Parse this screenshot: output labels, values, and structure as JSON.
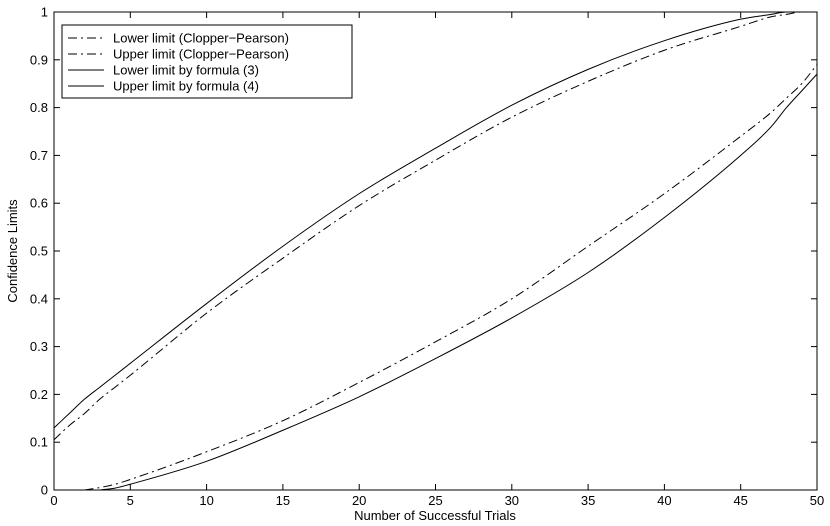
{
  "chart_data": {
    "type": "line",
    "xlabel": "Number of Successful Trials",
    "ylabel": "Confidence Limits",
    "xlim": [
      0,
      50
    ],
    "ylim": [
      0,
      1
    ],
    "xticks": [
      "0",
      "5",
      "10",
      "15",
      "20",
      "25",
      "30",
      "35",
      "40",
      "45",
      "50"
    ],
    "yticks": [
      "0",
      "0.1",
      "0.2",
      "0.3",
      "0.4",
      "0.5",
      "0.6",
      "0.7",
      "0.8",
      "0.9",
      "1"
    ],
    "grid": false,
    "legend_position": "top-left",
    "x": [
      0,
      1,
      2,
      3,
      4,
      5,
      10,
      15,
      20,
      25,
      30,
      35,
      40,
      45,
      47,
      48,
      49,
      50
    ],
    "series": [
      {
        "name": "Lower limit (Clopper−Pearson)",
        "style": "dashdot",
        "color": "#000000",
        "values": [
          null,
          null,
          0.0,
          0.005,
          0.012,
          0.022,
          0.08,
          0.145,
          0.225,
          0.31,
          0.4,
          0.51,
          0.62,
          0.74,
          0.79,
          0.82,
          0.85,
          0.89
        ]
      },
      {
        "name": "Upper limit (Clopper−Pearson)",
        "style": "dashdot",
        "color": "#000000",
        "values": [
          0.105,
          0.135,
          0.16,
          0.19,
          0.215,
          0.24,
          0.37,
          0.485,
          0.595,
          0.69,
          0.78,
          0.855,
          0.92,
          0.97,
          0.99,
          0.995,
          1.0,
          1.0
        ]
      },
      {
        "name": "Lower limit by formula (3)",
        "style": "solid",
        "color": "#000000",
        "values": [
          null,
          null,
          null,
          0.0,
          0.004,
          0.012,
          0.06,
          0.125,
          0.195,
          0.275,
          0.36,
          0.455,
          0.57,
          0.7,
          0.76,
          0.8,
          0.835,
          0.87
        ]
      },
      {
        "name": "Upper limit by formula (4)",
        "style": "solid",
        "color": "#000000",
        "values": [
          0.13,
          0.16,
          0.19,
          0.215,
          0.24,
          0.265,
          0.39,
          0.51,
          0.62,
          0.715,
          0.805,
          0.88,
          0.94,
          0.985,
          0.995,
          1.0,
          1.0,
          1.0
        ]
      }
    ]
  }
}
